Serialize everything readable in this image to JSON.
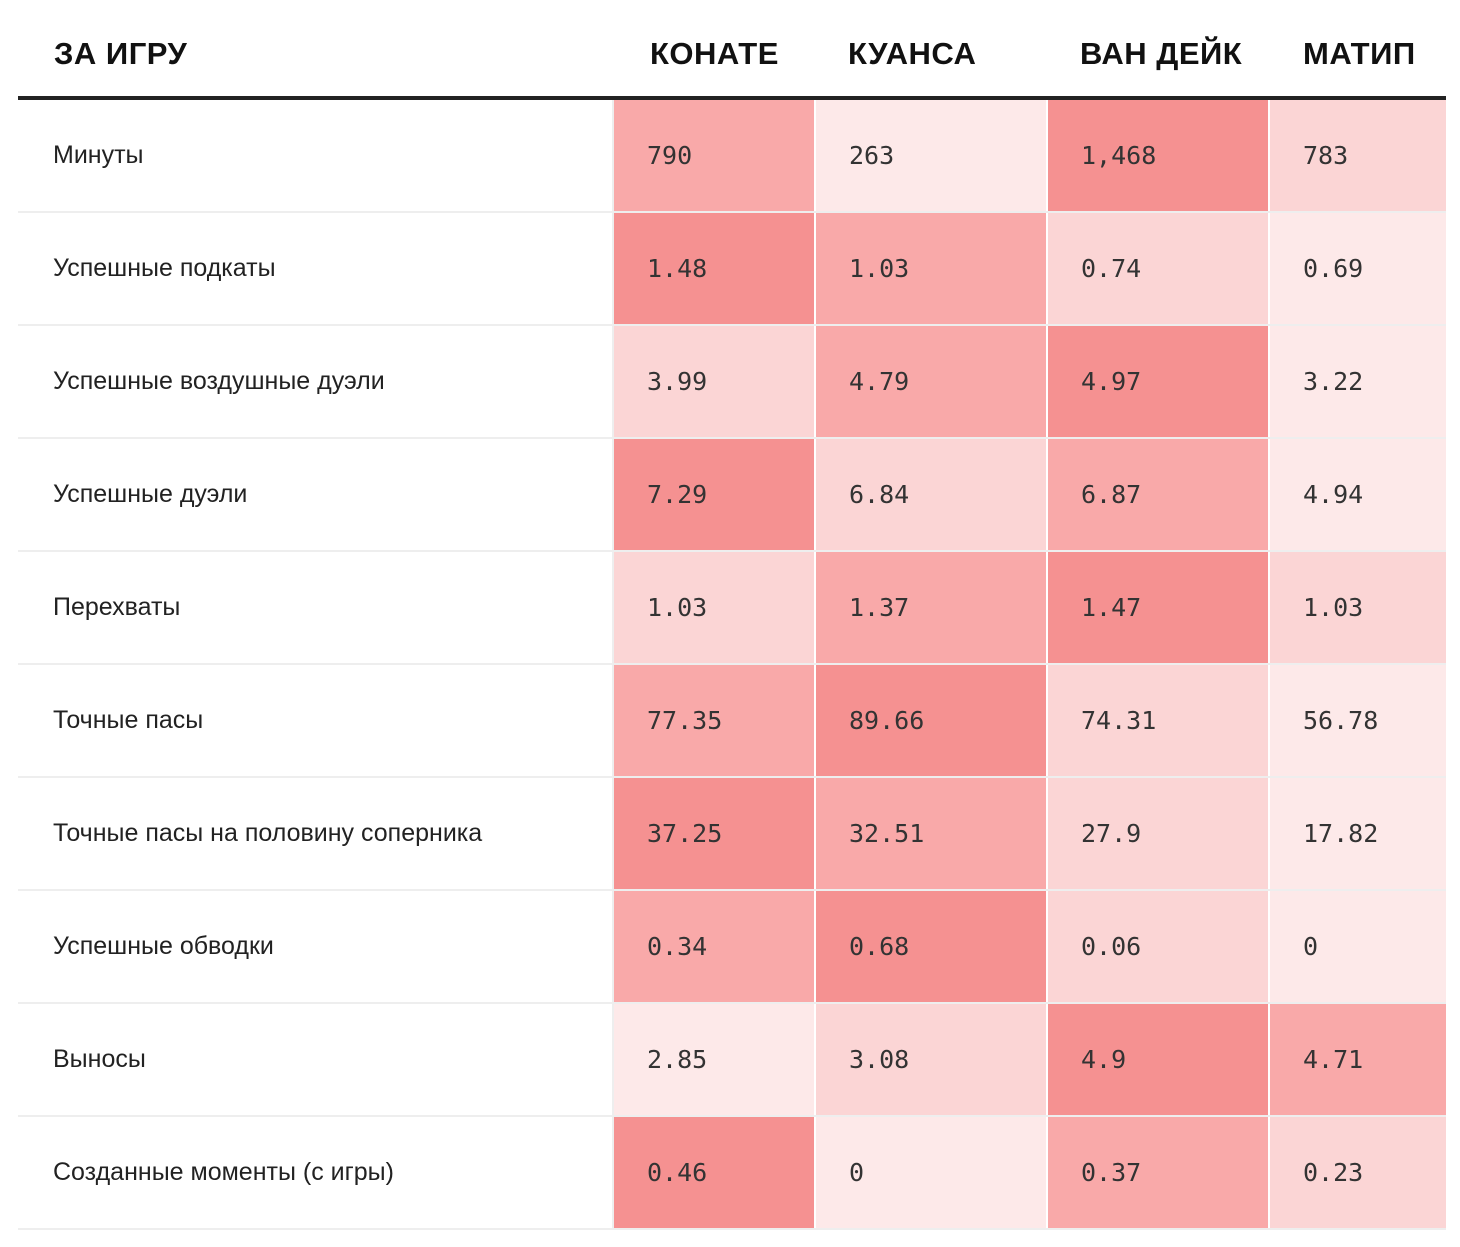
{
  "header": {
    "row_label": "ЗА ИГРУ",
    "players": [
      "КОНАТЕ",
      "КУАНСА",
      "ВАН ДЕЙК",
      "МАТИП"
    ]
  },
  "palette": {
    "shade_1": "#fde9e9",
    "shade_2": "#fbd5d5",
    "shade_3": "#f9a9a9",
    "shade_4": "#f59191"
  },
  "chart_data": {
    "type": "table",
    "title": "",
    "columns": [
      "ЗА ИГРУ",
      "КОНАТЕ",
      "КУАНСА",
      "ВАН ДЕЙК",
      "МАТИП"
    ],
    "rows": [
      {
        "label": "Минуты",
        "values": [
          "790",
          "263",
          "1,468",
          "783"
        ],
        "shade": [
          3,
          1,
          4,
          2
        ]
      },
      {
        "label": "Успешные подкаты",
        "values": [
          "1.48",
          "1.03",
          "0.74",
          "0.69"
        ],
        "shade": [
          4,
          3,
          2,
          1
        ]
      },
      {
        "label": "Успешные воздушные дуэли",
        "values": [
          "3.99",
          "4.79",
          "4.97",
          "3.22"
        ],
        "shade": [
          2,
          3,
          4,
          1
        ]
      },
      {
        "label": "Успешные дуэли",
        "values": [
          "7.29",
          "6.84",
          "6.87",
          "4.94"
        ],
        "shade": [
          4,
          2,
          3,
          1
        ]
      },
      {
        "label": "Перехваты",
        "values": [
          "1.03",
          "1.37",
          "1.47",
          "1.03"
        ],
        "shade": [
          2,
          3,
          4,
          2
        ]
      },
      {
        "label": "Точные пасы",
        "values": [
          "77.35",
          "89.66",
          "74.31",
          "56.78"
        ],
        "shade": [
          3,
          4,
          2,
          1
        ]
      },
      {
        "label": "Точные пасы на половину соперника",
        "values": [
          "37.25",
          "32.51",
          "27.9",
          "17.82"
        ],
        "shade": [
          4,
          3,
          2,
          1
        ]
      },
      {
        "label": "Успешные обводки",
        "values": [
          "0.34",
          "0.68",
          "0.06",
          "0"
        ],
        "shade": [
          3,
          4,
          2,
          1
        ]
      },
      {
        "label": "Выносы",
        "values": [
          "2.85",
          "3.08",
          "4.9",
          "4.71"
        ],
        "shade": [
          1,
          2,
          4,
          3
        ]
      },
      {
        "label": "Созданные моменты (с игры)",
        "values": [
          "0.46",
          "0",
          "0.37",
          "0.23"
        ],
        "shade": [
          4,
          1,
          3,
          2
        ]
      }
    ]
  }
}
